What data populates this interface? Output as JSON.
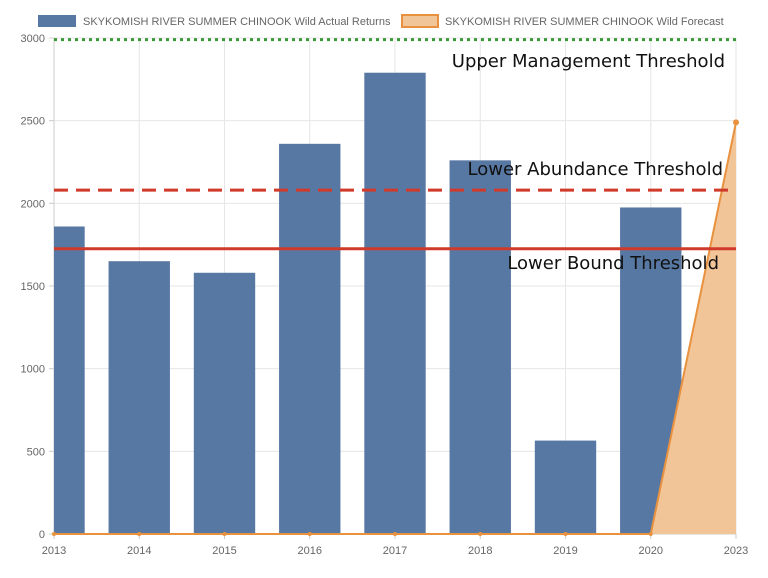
{
  "chart_data": {
    "type": "bar",
    "categories": [
      "2013",
      "2014",
      "2015",
      "2016",
      "2017",
      "2018",
      "2019",
      "2020",
      "2023"
    ],
    "series": [
      {
        "name": "SKYKOMISH RIVER  SUMMER CHINOOK Wild Actual Returns",
        "type": "bar",
        "color": "#5878a4",
        "values": [
          1860,
          1650,
          1580,
          2360,
          2790,
          2260,
          565,
          1975,
          null
        ]
      },
      {
        "name": "SKYKOMISH RIVER  SUMMER CHINOOK Wild Forecast",
        "type": "area",
        "color": "#e8913f",
        "fill": "#f2c598",
        "values": [
          0,
          0,
          0,
          0,
          0,
          0,
          0,
          0,
          2490
        ]
      }
    ],
    "thresholds": [
      {
        "label": "Upper Management Threshold",
        "value": 2990,
        "color": "#3a9a3a",
        "style": "dotted"
      },
      {
        "label": "Lower Abundance Threshold",
        "value": 2080,
        "color": "#d03a2a",
        "style": "dashed"
      },
      {
        "label": "Lower Bound Threshold",
        "value": 1725,
        "color": "#d03a2a",
        "style": "solid"
      }
    ],
    "yticks": [
      "0",
      "500",
      "1000",
      "1500",
      "2000",
      "2500",
      "3000"
    ],
    "ylim": [
      0,
      3000
    ],
    "grid": true,
    "legend_position": "top"
  }
}
